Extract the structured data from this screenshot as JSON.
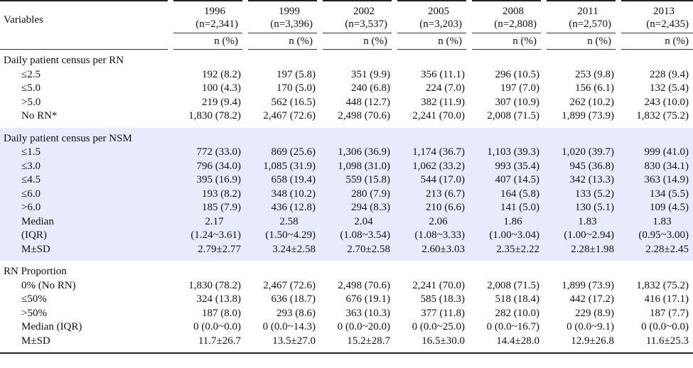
{
  "header": {
    "variables_label": "Variables",
    "unit_label": "n (%)",
    "years": [
      {
        "year": "1996",
        "n": "(n=2,341)"
      },
      {
        "year": "1999",
        "n": "(n=3,396)"
      },
      {
        "year": "2002",
        "n": "(n=3,537)"
      },
      {
        "year": "2005",
        "n": "(n=3,203)"
      },
      {
        "year": "2008",
        "n": "(n=2,808)"
      },
      {
        "year": "2011",
        "n": "(n=2,570)"
      },
      {
        "year": "2013",
        "n": "(n=2,435)"
      }
    ]
  },
  "sections": [
    {
      "title": "Daily patient census per RN",
      "style": "white",
      "rows": [
        {
          "label": "≤2.5",
          "values": [
            "192 (8.2)",
            "197 (5.8)",
            "351 (9.9)",
            "356 (11.1)",
            "296 (10.5)",
            "253 (9.8)",
            "228 (9.4)"
          ]
        },
        {
          "label": "≤5.0",
          "values": [
            "100 (4.3)",
            "170 (5.0)",
            "240 (6.8)",
            "224 (7.0)",
            "197 (7.0)",
            "156 (6.1)",
            "132 (5.4)"
          ]
        },
        {
          "label": ">5.0",
          "values": [
            "219 (9.4)",
            "562 (16.5)",
            "448 (12.7)",
            "382 (11.9)",
            "307 (10.9)",
            "262 (10.2)",
            "243 (10.0)"
          ]
        },
        {
          "label": "No RN*",
          "values": [
            "1,830 (78.2)",
            "2,467 (72.6)",
            "2,498 (70.6)",
            "2,241 (70.0)",
            "2,008 (71.5)",
            "1,899 (73.9)",
            "1,832 (75.2)"
          ]
        }
      ]
    },
    {
      "title": "Daily patient census per NSM",
      "style": "blue",
      "rows": [
        {
          "label": "≤1.5",
          "values": [
            "772 (33.0)",
            "869 (25.6)",
            "1,306 (36.9)",
            "1,174 (36.7)",
            "1,103 (39.3)",
            "1,020 (39.7)",
            "999 (41.0)"
          ]
        },
        {
          "label": "≤3.0",
          "values": [
            "796 (34.0)",
            "1,085 (31.9)",
            "1,098 (31.0)",
            "1,062 (33.2)",
            "993 (35.4)",
            "945 (36.8)",
            "830 (34.1)"
          ]
        },
        {
          "label": "≤4.5",
          "values": [
            "395 (16.9)",
            "658 (19.4)",
            "559 (15.8)",
            "544 (17.0)",
            "407 (14.5)",
            "342 (13.3)",
            "363 (14.9)"
          ]
        },
        {
          "label": "≤6.0",
          "values": [
            "193 (8.2)",
            "348 (10.2)",
            "280 (7.9)",
            "213 (6.7)",
            "164 (5.8)",
            "133 (5.2)",
            "134 (5.5)"
          ]
        },
        {
          "label": ">6.0",
          "values": [
            "185 (7.9)",
            "436 (12.8)",
            "294 (8.3)",
            "210 (6.6)",
            "141 (5.0)",
            "130 (5.1)",
            "109 (4.5)"
          ]
        },
        {
          "label": "Median",
          "values": [
            "2.17",
            "2.58",
            "2.04",
            "2.06",
            "1.86",
            "1.83",
            "1.83"
          ],
          "center": true
        },
        {
          "label": "(IQR)",
          "values": [
            "(1.24~3.61)",
            "(1.50~4.29)",
            "(1.08~3.54)",
            "(1.08~3.33)",
            "(1.00~3.04)",
            "(1.00~2.94)",
            "(0.95~3.00)"
          ]
        },
        {
          "label": "M±SD",
          "values": [
            "2.79±2.77",
            "3.24±2.58",
            "2.70±2.58",
            "2.60±3.03",
            "2.35±2.22",
            "2.28±1.98",
            "2.28±2.45"
          ]
        }
      ]
    },
    {
      "title": "RN Proportion",
      "style": "white",
      "rows": [
        {
          "label": "0% (No RN)",
          "values": [
            "1,830 (78.2)",
            "2,467 (72.6)",
            "2,498 (70.6)",
            "2,241 (70.0)",
            "2,008 (71.5)",
            "1,899 (73.9)",
            "1,832 (75.2)"
          ]
        },
        {
          "label": "≤50%",
          "values": [
            "324 (13.8)",
            "636 (18.7)",
            "676 (19.1)",
            "585 (18.3)",
            "518 (18.4)",
            "442 (17.2)",
            "416 (17.1)"
          ]
        },
        {
          "label": ">50%",
          "values": [
            "187 (8.0)",
            "293 (8.6)",
            "363 (10.3)",
            "377 (11.8)",
            "282 (10.0)",
            "229 (8.9)",
            "187 (7.7)"
          ]
        },
        {
          "label": "Median (IQR)",
          "values": [
            "0 (0.0~0.0)",
            "0 (0.0~14.3)",
            "0 (0.0~20.0)",
            "0 (0.0~25.0)",
            "0 (0.0~16.7)",
            "0 (0.0~9.1)",
            "0 (0.0~0.0)"
          ]
        },
        {
          "label": "M±SD",
          "values": [
            "11.7±26.7",
            "13.5±27.0",
            "15.2±28.7",
            "16.5±30.0",
            "14.4±28.0",
            "12.9±26.8",
            "11.6±25.3"
          ]
        }
      ]
    }
  ]
}
